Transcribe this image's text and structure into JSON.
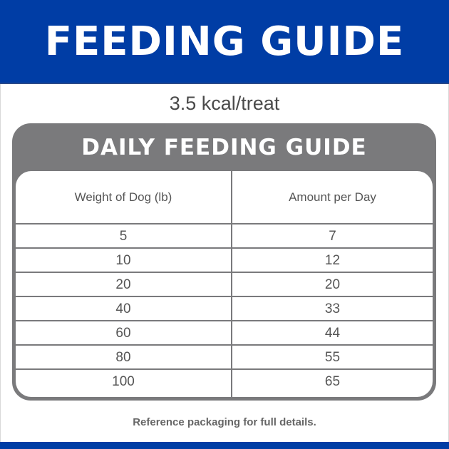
{
  "header": {
    "title": "FEEDING GUIDE"
  },
  "calories": "3.5 kcal/treat",
  "guide": {
    "title": "DAILY FEEDING GUIDE",
    "columns": [
      "Weight of Dog (lb)",
      "Amount per Day"
    ],
    "rows": [
      [
        "5",
        "7"
      ],
      [
        "10",
        "12"
      ],
      [
        "20",
        "20"
      ],
      [
        "40",
        "33"
      ],
      [
        "60",
        "44"
      ],
      [
        "80",
        "55"
      ],
      [
        "100",
        "65"
      ]
    ]
  },
  "footer": "Reference packaging for full details.",
  "colors": {
    "brand_blue": "#003DA5",
    "table_gray": "#7A7A7C"
  }
}
